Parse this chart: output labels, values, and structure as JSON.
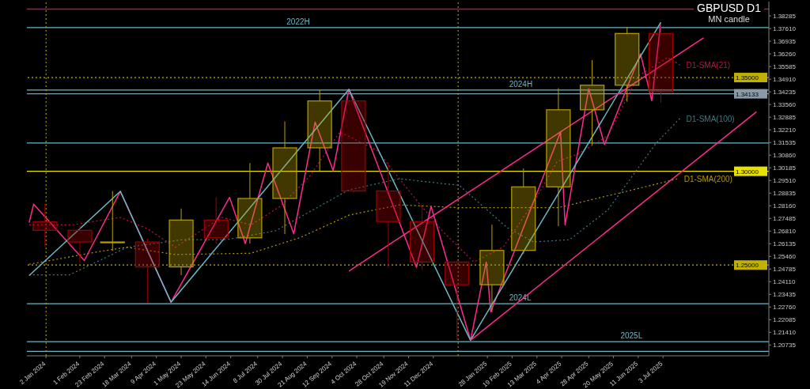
{
  "chart_data": {
    "type": "candlestick",
    "title": "GBPUSD D1",
    "subtitle": "MN candle",
    "x": [
      "2024-01-01",
      "2024-02-01",
      "2024-03-01",
      "2024-04-01",
      "2024-05-01",
      "2024-06-01",
      "2024-07-01",
      "2024-08-01",
      "2024-09-01",
      "2024-10-01",
      "2024-11-01",
      "2024-12-01",
      "2025-01-01",
      "2025-02-01",
      "2025-03-01",
      "2025-04-01",
      "2025-05-01",
      "2025-06-01",
      "2025-07-01"
    ],
    "ohlc": [
      [
        1.273,
        1.2827,
        1.2597,
        1.2685
      ],
      [
        1.2685,
        1.271,
        1.2518,
        1.2623
      ],
      [
        1.2623,
        1.2894,
        1.2575,
        1.2623
      ],
      [
        1.2623,
        1.264,
        1.23,
        1.249
      ],
      [
        1.249,
        1.2801,
        1.2446,
        1.274
      ],
      [
        1.274,
        1.286,
        1.2613,
        1.2645
      ],
      [
        1.2645,
        1.3044,
        1.2615,
        1.2855
      ],
      [
        1.2855,
        1.3266,
        1.2665,
        1.3125
      ],
      [
        1.3125,
        1.3434,
        1.3001,
        1.3375
      ],
      [
        1.3375,
        1.3391,
        1.2886,
        1.2895
      ],
      [
        1.2895,
        1.3048,
        1.2487,
        1.2732
      ],
      [
        1.2732,
        1.2811,
        1.2474,
        1.2516
      ],
      [
        1.2516,
        1.2523,
        1.21,
        1.2395
      ],
      [
        1.2395,
        1.2715,
        1.2249,
        1.2578
      ],
      [
        1.2578,
        1.3015,
        1.256,
        1.2917
      ],
      [
        1.2917,
        1.3443,
        1.2708,
        1.3328
      ],
      [
        1.3328,
        1.3593,
        1.3139,
        1.3459
      ],
      [
        1.3459,
        1.377,
        1.3371,
        1.3735
      ],
      [
        1.3735,
        1.3789,
        1.3366,
        1.3425
      ]
    ],
    "colors": [
      "#a00000",
      "#a00000",
      "#b8a000",
      "#a00000",
      "#b8a000",
      "#a00000",
      "#b8a000",
      "#b8a000",
      "#b8a000",
      "#a00000",
      "#a00000",
      "#a00000",
      "#a00000",
      "#b8a000",
      "#b8a000",
      "#b8a000",
      "#b8a000",
      "#b8a000",
      "#a00000"
    ],
    "series": [
      {
        "type": "line",
        "name": "D1-SMA(21)",
        "color": "#c0104a",
        "line_style": "dotted",
        "x": [
          "2023-12-18",
          "2024-01-25",
          "2024-03-08",
          "2024-04-01",
          "2024-04-26",
          "2024-06-06",
          "2024-07-02",
          "2024-07-28",
          "2024-08-23",
          "2024-09-19",
          "2024-10-22",
          "2024-11-25",
          "2024-12-20",
          "2025-01-16",
          "2025-02-11",
          "2025-03-10",
          "2025-03-31",
          "2025-04-18",
          "2025-05-15",
          "2025-06-11",
          "2025-07-07",
          "2025-07-18"
        ],
        "values": [
          1.2714,
          1.2714,
          1.2754,
          1.2694,
          1.2595,
          1.2754,
          1.2714,
          1.2813,
          1.2972,
          1.321,
          1.3111,
          1.2853,
          1.2675,
          1.2516,
          1.2595,
          1.2833,
          1.3052,
          1.3091,
          1.319,
          1.3508,
          1.3607,
          1.3567
        ]
      },
      {
        "type": "line",
        "name": "D1-SMA(100)",
        "color": "#3a7a80",
        "line_style": "dotted",
        "x": [
          "2023-12-18",
          "2024-01-23",
          "2024-03-14",
          "2024-05-02",
          "2024-06-10",
          "2024-07-24",
          "2024-09-27",
          "2024-11-11",
          "2025-01-03",
          "2025-02-14",
          "2025-03-10",
          "2025-04-11",
          "2025-05-15",
          "2025-06-27",
          "2025-07-18"
        ],
        "values": [
          1.2448,
          1.2448,
          1.2595,
          1.2635,
          1.2635,
          1.2683,
          1.2901,
          1.296,
          1.2925,
          1.2702,
          1.2623,
          1.2635,
          1.2794,
          1.3151,
          1.3282
        ]
      },
      {
        "type": "line",
        "name": "D1-SMA(200)",
        "color": "#b09a00",
        "line_style": "dotted",
        "x": [
          "2023-12-18",
          "2024-02-21",
          "2024-03-14",
          "2024-04-26",
          "2024-07-02",
          "2024-08-15",
          "2024-09-27",
          "2024-11-11",
          "2025-01-03",
          "2025-04-01",
          "2025-06-06",
          "2025-07-16"
        ],
        "values": [
          1.2504,
          1.2575,
          1.2595,
          1.2556,
          1.2563,
          1.2647,
          1.2766,
          1.2821,
          1.2806,
          1.2806,
          1.2901,
          1.296
        ]
      },
      {
        "type": "line",
        "color": "#ff2a8c",
        "line_style": "solid",
        "x": [
          "2023-12-18",
          "2023-12-22",
          "2024-02-05",
          "2024-03-08",
          "2024-04-22",
          "2024-06-13",
          "2024-06-27",
          "2024-07-17",
          "2024-08-09",
          "2024-08-28",
          "2024-09-13",
          "2024-09-27",
          "2024-11-26",
          "2024-12-09",
          "2025-01-13",
          "2025-01-27",
          "2025-01-31",
          "2025-04-03",
          "2025-04-07",
          "2025-04-28",
          "2025-05-12",
          "2025-06-13",
          "2025-06-23",
          "2025-07-01"
        ],
        "values": [
          1.2726,
          1.2825,
          1.2524,
          1.2893,
          1.2302,
          1.2861,
          1.2615,
          1.3044,
          1.2667,
          1.3262,
          1.3004,
          1.3437,
          1.2488,
          1.2813,
          1.2099,
          1.2516,
          1.225,
          1.321,
          1.2714,
          1.344,
          1.3143,
          1.3627,
          1.3377,
          1.3794
        ]
      },
      {
        "type": "line",
        "color": "#6ab8c4",
        "line_style": "solid",
        "x": [
          "2023-12-18",
          "2024-03-08",
          "2024-04-22",
          "2024-09-27",
          "2025-01-13",
          "2025-07-01"
        ],
        "values": [
          1.2444,
          1.2893,
          1.2302,
          1.3437,
          1.2099,
          1.3794
        ]
      },
      {
        "type": "line",
        "color": "#ff2a8c",
        "line_style": "solid",
        "x": [
          "2024-09-27",
          "2025-08-08"
        ],
        "values": [
          1.2468,
          1.3712
        ]
      },
      {
        "type": "line",
        "color": "#ff2a8c",
        "line_style": "solid",
        "x": [
          "2025-01-13",
          "2025-09-24"
        ],
        "values": [
          1.2099,
          1.3317
        ]
      }
    ],
    "xlim": [
      "2023-12-16",
      "2025-10-05"
    ],
    "xticks": [
      {
        "value": "2024-01-02",
        "label": "2 Jan 2024"
      },
      {
        "value": "2024-02-01",
        "label": "1 Feb 2024"
      },
      {
        "value": "2024-02-23",
        "label": "23 Feb 2024"
      },
      {
        "value": "2024-03-18",
        "label": "18 Mar 2024"
      },
      {
        "value": "2024-04-09",
        "label": "9 Apr 2024"
      },
      {
        "value": "2024-05-01",
        "label": "1 May 2024"
      },
      {
        "value": "2024-05-23",
        "label": "23 May 2024"
      },
      {
        "value": "2024-06-14",
        "label": "14 Jun 2024"
      },
      {
        "value": "2024-07-08",
        "label": "8 Jul 2024"
      },
      {
        "value": "2024-07-30",
        "label": "30 Jul 2024"
      },
      {
        "value": "2024-08-21",
        "label": "21 Aug 2024"
      },
      {
        "value": "2024-09-12",
        "label": "12 Sep 2024"
      },
      {
        "value": "2024-10-04",
        "label": "4 Oct 2024"
      },
      {
        "value": "2024-10-28",
        "label": "28 Oct 2024"
      },
      {
        "value": "2024-11-19",
        "label": "19 Nov 2024"
      },
      {
        "value": "2024-12-11",
        "label": "11 Dec 2024"
      },
      {
        "value": "2025-01-28",
        "label": "28 Jan 2025"
      },
      {
        "value": "2025-02-19",
        "label": "19 Feb 2025"
      },
      {
        "value": "2025-03-13",
        "label": "13 Mar 2025"
      },
      {
        "value": "2025-04-04",
        "label": "4 Apr 2025"
      },
      {
        "value": "2025-04-28",
        "label": "28 Apr 2025"
      },
      {
        "value": "2025-05-20",
        "label": "20 May 2025"
      },
      {
        "value": "2025-06-11",
        "label": "11 Jun 2025"
      },
      {
        "value": "2025-07-03",
        "label": "3 Jul 2025"
      }
    ],
    "ylim": [
      1.2016,
      1.3905
    ],
    "yticks": [
      {
        "value": 1.20735,
        "label": "1.20735"
      },
      {
        "value": 1.2141,
        "label": "1.21410"
      },
      {
        "value": 1.22085,
        "label": "1.22085"
      },
      {
        "value": 1.2276,
        "label": "1.22760"
      },
      {
        "value": 1.23435,
        "label": "1.23435"
      },
      {
        "value": 1.2411,
        "label": "1.24110"
      },
      {
        "value": 1.24785,
        "label": "1.24785"
      },
      {
        "value": 1.2546,
        "label": "1.25460"
      },
      {
        "value": 1.26135,
        "label": "1.26135"
      },
      {
        "value": 1.2681,
        "label": "1.26810"
      },
      {
        "value": 1.27485,
        "label": "1.27485"
      },
      {
        "value": 1.2816,
        "label": "1.28160"
      },
      {
        "value": 1.28835,
        "label": "1.28835"
      },
      {
        "value": 1.2951,
        "label": "1.29510"
      },
      {
        "value": 1.30185,
        "label": "1.30185"
      },
      {
        "value": 1.3086,
        "label": "1.30860"
      },
      {
        "value": 1.31535,
        "label": "1.31535"
      },
      {
        "value": 1.3221,
        "label": "1.32210"
      },
      {
        "value": 1.32885,
        "label": "1.32885"
      },
      {
        "value": 1.3356,
        "label": "1.33560"
      },
      {
        "value": 1.34235,
        "label": "1.34235"
      },
      {
        "value": 1.3491,
        "label": "1.34910"
      },
      {
        "value": 1.35585,
        "label": "1.35585"
      },
      {
        "value": 1.3626,
        "label": "1.36260"
      },
      {
        "value": 1.36935,
        "label": "1.36935"
      },
      {
        "value": 1.3761,
        "label": "1.37610"
      },
      {
        "value": 1.38285,
        "label": "1.38285"
      }
    ],
    "ref_lines": [
      {
        "axis": "y",
        "value": 1.3865,
        "color": "#a0205a",
        "line_style": "solid"
      },
      {
        "axis": "y",
        "value": 1.3766,
        "label": "2022H",
        "color": "#6ab8c4",
        "line_style": "solid"
      },
      {
        "axis": "y",
        "value": 1.35,
        "label": "1.35000",
        "color": "#c0b000",
        "line_style": "dotted"
      },
      {
        "axis": "y",
        "value": 1.3433,
        "label": "2024H",
        "color": "#6ab8c4",
        "line_style": "solid"
      },
      {
        "axis": "y",
        "value": 1.34133,
        "label": "1.34133",
        "color": "#8a9aa8",
        "line_style": "solid"
      },
      {
        "axis": "y",
        "value": 1.3151,
        "color": "#6ab8c4",
        "line_style": "solid"
      },
      {
        "axis": "y",
        "value": 1.3,
        "label": "1.30000",
        "color": "#e8e000",
        "line_style": "solid"
      },
      {
        "axis": "y",
        "value": 1.25,
        "label": "1.25000",
        "color": "#c0b000",
        "line_style": "dotted"
      },
      {
        "axis": "y",
        "value": 1.2294,
        "label": "2024L",
        "color": "#6ab8c4",
        "line_style": "solid"
      },
      {
        "axis": "y",
        "value": 1.2091,
        "label": "2025L",
        "color": "#6ab8c4",
        "line_style": "solid"
      },
      {
        "axis": "y",
        "value": 1.204,
        "color": "#6ab8c4",
        "line_style": "solid"
      },
      {
        "axis": "x",
        "value": "2024-01-02",
        "color": "#c0b000",
        "line_style": "dotted"
      },
      {
        "axis": "x",
        "value": "2025-01-02",
        "color": "#c0b000",
        "line_style": "dotted"
      }
    ]
  }
}
